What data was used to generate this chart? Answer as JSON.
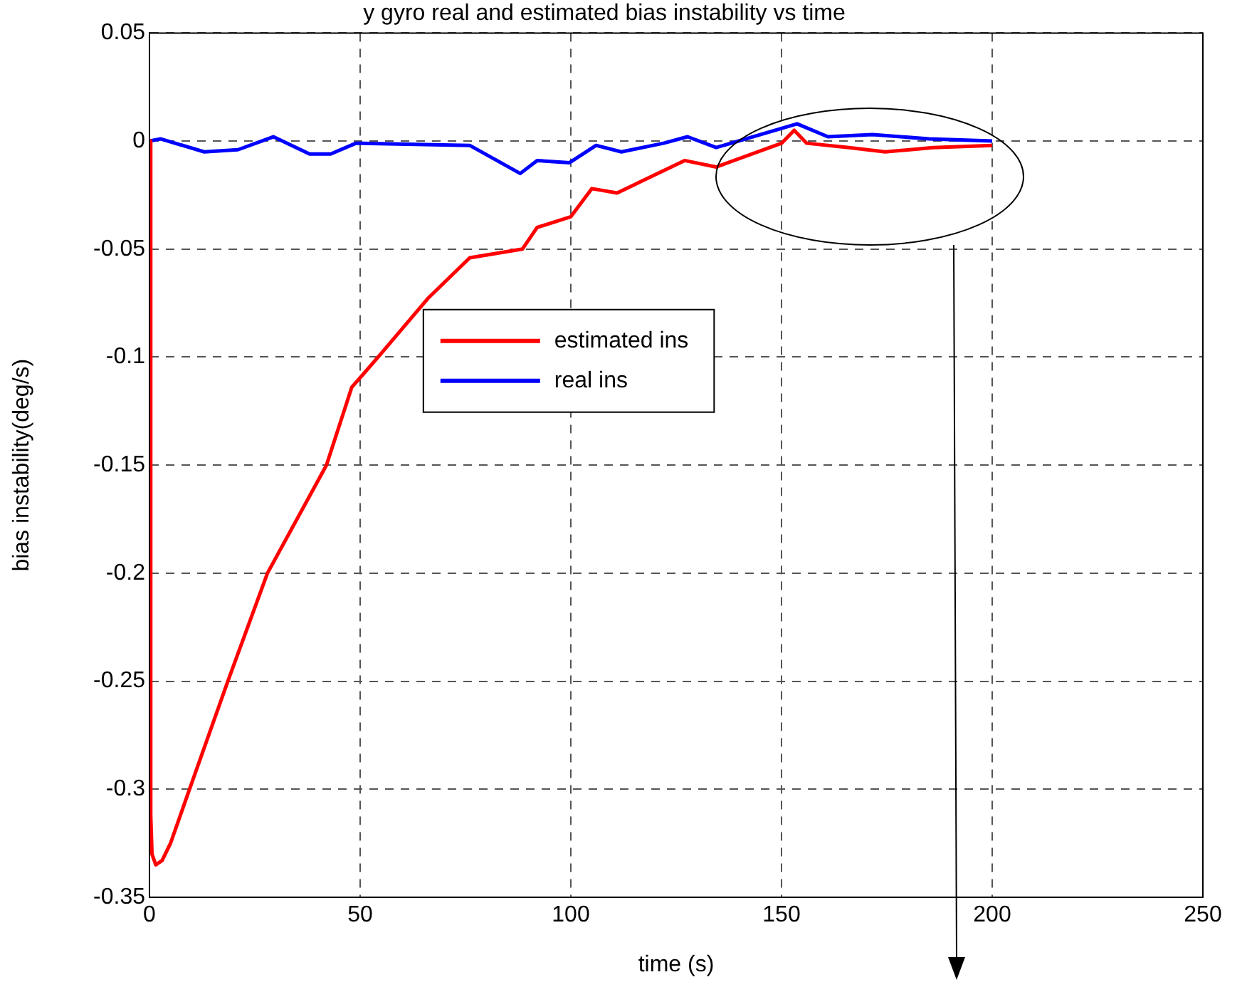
{
  "chart_data": {
    "type": "line",
    "title": "y gyro real and estimated bias instability vs time",
    "xlabel": "time (s)",
    "ylabel": "bias instability(deg/s)",
    "series": [
      {
        "name": "estimated ins",
        "color": "#ff0000",
        "x": [
          0,
          0.3,
          0.6,
          1.5,
          3,
          5,
          9.5,
          18.6,
          28,
          42,
          48,
          54.7,
          66,
          76,
          88.5,
          92,
          100,
          105,
          111,
          127,
          134.5,
          150,
          153,
          156,
          166,
          174.6,
          186,
          200
        ],
        "values": [
          0,
          -0.312,
          -0.33,
          -0.335,
          -0.333,
          -0.325,
          -0.3,
          -0.25,
          -0.2,
          -0.15,
          -0.114,
          -0.099,
          -0.073,
          -0.054,
          -0.05,
          -0.04,
          -0.035,
          -0.022,
          -0.024,
          -0.009,
          -0.012,
          -0.001,
          0.005,
          -0.001,
          -0.003,
          -0.005,
          -0.003,
          -0.002
        ]
      },
      {
        "name": "real ins",
        "color": "#0000ff",
        "x": [
          0,
          2.7,
          13,
          21,
          29.4,
          38,
          43,
          49,
          76,
          88,
          92,
          99.7,
          106,
          112,
          122,
          127.7,
          134.5,
          153.7,
          161,
          171.6,
          185,
          200
        ],
        "values": [
          0,
          0.001,
          -0.005,
          -0.004,
          0.002,
          -0.006,
          -0.006,
          -0.001,
          -0.002,
          -0.015,
          -0.009,
          -0.01,
          -0.002,
          -0.005,
          -0.001,
          0.002,
          -0.003,
          0.008,
          0.002,
          0.003,
          0.001,
          0
        ]
      }
    ],
    "xlim": [
      0,
      250
    ],
    "xticks": [
      0,
      50,
      100,
      150,
      200,
      250
    ],
    "ylim": [
      -0.35,
      0.05
    ],
    "yticks": [
      -0.35,
      -0.3,
      -0.25,
      -0.2,
      -0.15,
      -0.1,
      -0.05,
      0,
      0.05
    ],
    "grid": true,
    "legend": "center",
    "line_style": "solid",
    "marker": "none"
  }
}
